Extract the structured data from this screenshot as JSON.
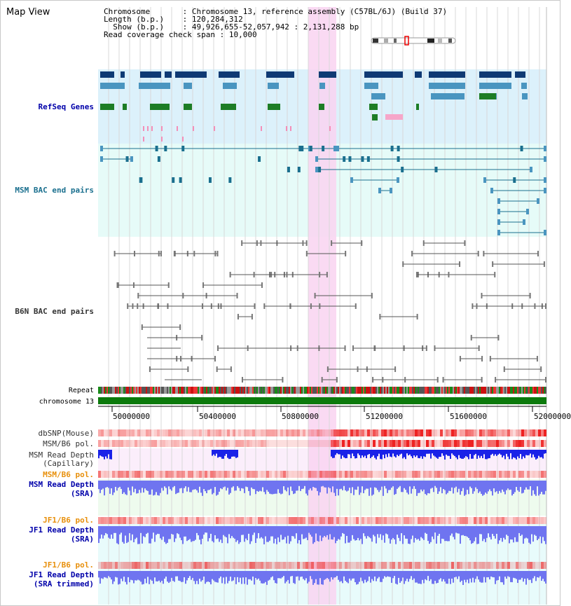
{
  "header": {
    "title": "Map View",
    "chromosome_label": "Chromosome",
    "chromosome_value": "Chromosome 13, reference assembly (C57BL/6J) (Build 37)",
    "length_label": "Length (b.p.)",
    "length_value": "120,284,312",
    "show_label": "Show (b.p.)",
    "show_value": "49,926,655-52,057,942 : 2,131,288 bp",
    "coverage_label": "Read coverage check span",
    "coverage_value": "10,000"
  },
  "tracks": {
    "refseq": "RefSeq Genes",
    "msm_bac": "MSM BAC end pairs",
    "b6n_bac": "B6N BAC end pairs",
    "repeat": "Repeat",
    "chromosome": "chromosome 13",
    "dbsnp": "dbSNP(Mouse)",
    "msm_b6_pol": "MSM/B6 pol.",
    "msm_depth_cap_1": "MSM Read Depth",
    "msm_depth_cap_2": "(Capillary)",
    "msm_b6_pol_2": "MSM/B6 pol.",
    "msm_depth_sra_1": "MSM Read Depth",
    "msm_depth_sra_2": "(SRA)",
    "jf1_b6_pol": "JF1/B6 pol.",
    "jf1_depth_sra_1": "JF1 Read Depth",
    "jf1_depth_sra_2": "(SRA)",
    "jf1_b6_pol_2": "JF1/B6 pol.",
    "jf1_depth_trim_1": "JF1 Read Depth",
    "jf1_depth_trim_2": "(SRA trimmed)"
  },
  "axis": {
    "ticks": [
      "50000000",
      "50400000",
      "50800000",
      "51200000",
      "51600000",
      "52000000"
    ]
  },
  "highlight_region": "selected region (pink band)",
  "colors": {
    "refseq_bg": "#dcf1fb",
    "msm_bg": "#e6fbf8",
    "selection": "#f9d3f1",
    "gene_dark": "#0f3a74",
    "gene_mid": "#4a95c0",
    "gene_green": "#1d7d25",
    "msm_line": "#1a6f8e",
    "b6n_line": "#555555",
    "chrom": "#0c7a0c",
    "depth_msm": "#1a22e8",
    "depth_sra": "#6f74f0",
    "blue_label": "#0000aa",
    "orange_label": "#e8900c",
    "gray_label": "#333333"
  }
}
